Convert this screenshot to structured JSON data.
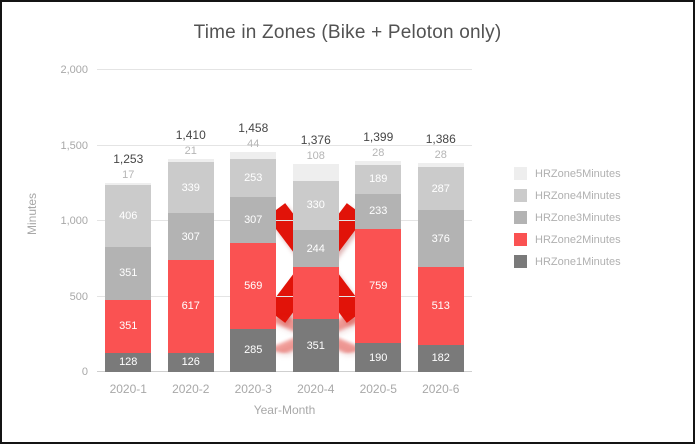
{
  "title": "Time in Zones (Bike + Peloton only)",
  "x_axis": {
    "title": "Year-Month"
  },
  "y_axis": {
    "title": "Minutes",
    "ticks": [
      {
        "value": 0,
        "label": "0"
      },
      {
        "value": 500,
        "label": "500"
      },
      {
        "value": 1000,
        "label": "1,000"
      },
      {
        "value": 1500,
        "label": "1,500"
      },
      {
        "value": 2000,
        "label": "2,000"
      }
    ]
  },
  "annotation": {
    "type": "red-x-mark",
    "over_category": "2020-4",
    "color": "#e11309"
  },
  "chart_data": {
    "type": "bar",
    "stacked": true,
    "categories": [
      "2020-1",
      "2020-2",
      "2020-3",
      "2020-4",
      "2020-5",
      "2020-6"
    ],
    "series": [
      {
        "name": "HRZone1Minutes",
        "color": "#7a7a7a",
        "label_position": "inside",
        "values": [
          128,
          126,
          285,
          351,
          190,
          182
        ]
      },
      {
        "name": "HRZone2Minutes",
        "color": "#fa5252",
        "label_position": "inside",
        "hidden_label_indexes": [
          3
        ],
        "values": [
          351,
          617,
          569,
          343,
          759,
          513
        ]
      },
      {
        "name": "HRZone3Minutes",
        "color": "#b3b3b3",
        "label_position": "inside",
        "values": [
          351,
          307,
          307,
          244,
          233,
          376
        ]
      },
      {
        "name": "HRZone4Minutes",
        "color": "#cbcbcb",
        "label_position": "inside",
        "values": [
          406,
          339,
          253,
          330,
          189,
          287
        ]
      },
      {
        "name": "HRZone5Minutes",
        "color": "#eeeeee",
        "label_position": "above",
        "values": [
          17,
          21,
          44,
          108,
          28,
          28
        ]
      }
    ],
    "totals": [
      "1,253",
      "1,410",
      "1,458",
      "1,376",
      "1,399",
      "1,386"
    ],
    "ylim": [
      0,
      2000
    ],
    "legend_position": "right",
    "grid": true
  }
}
